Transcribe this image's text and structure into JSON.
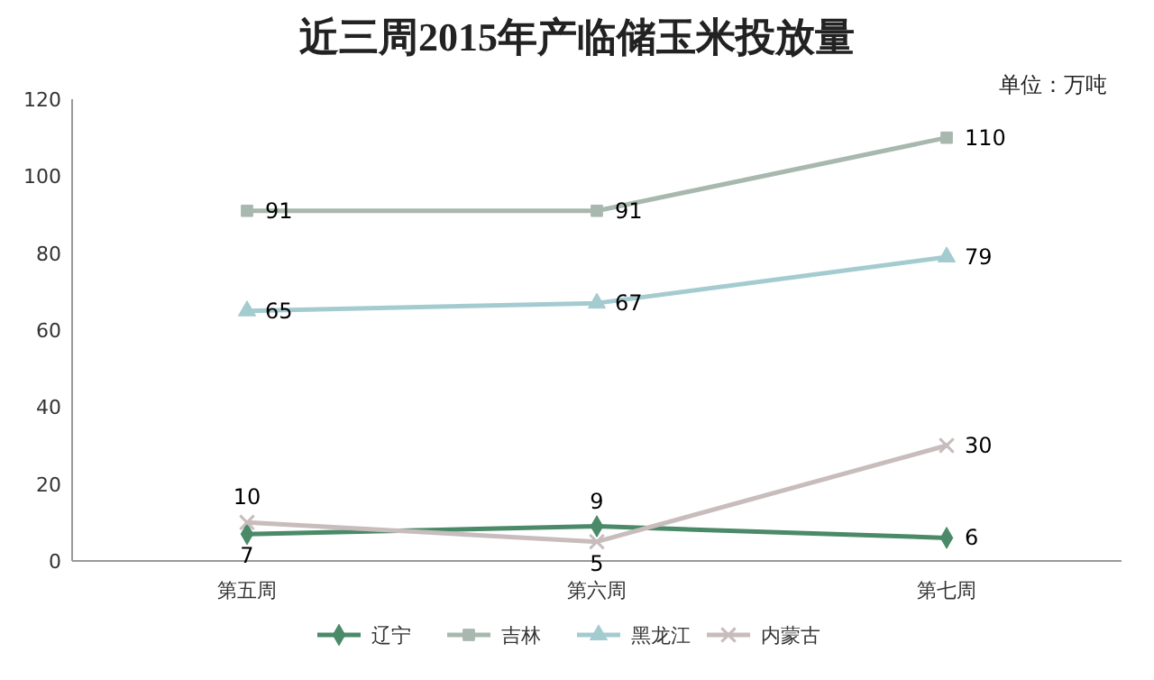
{
  "chart_data": {
    "type": "line",
    "title": "近三周2015年产临储玉米投放量",
    "annotations": [
      "单位：万吨"
    ],
    "categories": [
      "第五周",
      "第六周",
      "第七周"
    ],
    "series": [
      {
        "name": "辽宁",
        "color": "#4a8a68",
        "marker": "diamond",
        "values": [
          7,
          9,
          6
        ]
      },
      {
        "name": "吉林",
        "color": "#a8b8ae",
        "marker": "square",
        "values": [
          91,
          91,
          110
        ]
      },
      {
        "name": "黑龙江",
        "color": "#a4ccd0",
        "marker": "triangle",
        "values": [
          65,
          67,
          79
        ]
      },
      {
        "name": "内蒙古",
        "color": "#c8bcbc",
        "marker": "cross",
        "values": [
          10,
          5,
          30
        ]
      }
    ],
    "ylim": [
      0,
      120
    ],
    "yticks": [
      0,
      20,
      40,
      60,
      80,
      100,
      120
    ],
    "grid": false,
    "data_labels": true,
    "legend": "bottom",
    "line_style": "solid"
  }
}
